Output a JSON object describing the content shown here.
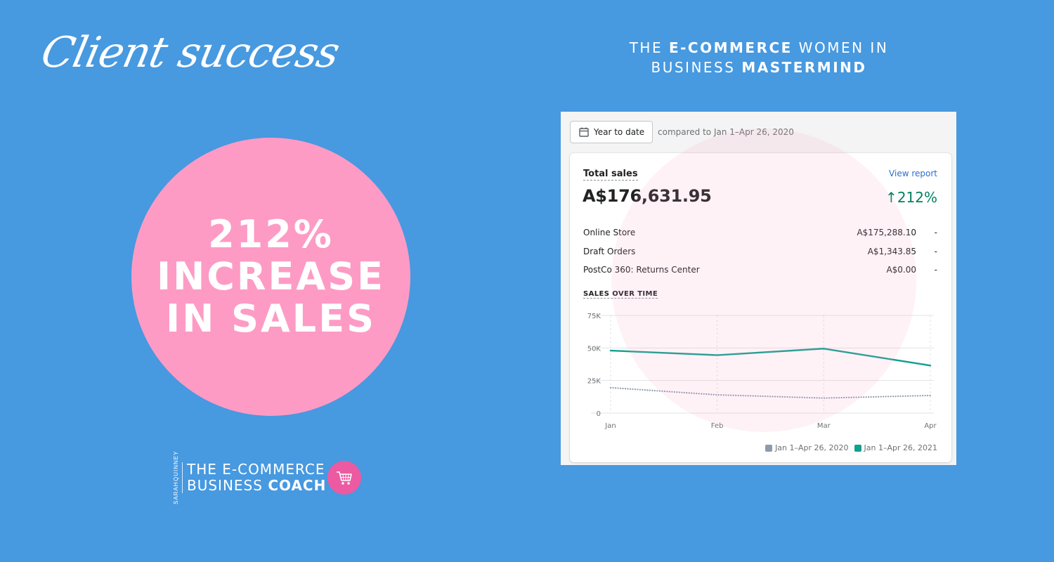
{
  "script_title": "Client success",
  "mastermind": {
    "pre": "THE ",
    "bold1": "E-COMMERCE",
    "mid": " WOMEN IN",
    "line2_pre": "BUSINESS ",
    "bold2": "MASTERMIND"
  },
  "headline": {
    "line1": "212%",
    "line2": "INCREASE",
    "line3": "IN SALES"
  },
  "brand": {
    "vertical_top": "SARAH",
    "vertical_bottom": "QUINNEY",
    "line1": "THE E-COMMERCE",
    "line2_pre": "BUSINESS ",
    "line2_bold": "COACH",
    "cart_icon": "shopping-cart-icon"
  },
  "report": {
    "date_button_label": "Year to date",
    "compare_text": "compared to Jan 1–Apr 26, 2020",
    "title": "Total sales",
    "view_report_label": "View report",
    "total": "A$176,631.95",
    "change": "212%",
    "channels": [
      {
        "name": "Online Store",
        "amount": "A$175,288.10",
        "trend": "-"
      },
      {
        "name": "Draft Orders",
        "amount": "A$1,343.85",
        "trend": "-"
      },
      {
        "name": "PostCo 360: Returns Center",
        "amount": "A$0.00",
        "trend": "-"
      }
    ],
    "sales_over_time_label": "SALES OVER TIME"
  },
  "colors": {
    "background": "#4799e0",
    "pink": "#fd9bc5",
    "current": "#12a08f",
    "previous": "#8c9bab",
    "positive": "#008060"
  },
  "chart_data": {
    "type": "line",
    "x": [
      "Jan",
      "Feb",
      "Mar",
      "Apr"
    ],
    "y_ticks": [
      "75K",
      "50K",
      "25K",
      "0"
    ],
    "ylim": [
      0,
      75000
    ],
    "grid": true,
    "legend": "bottom-right",
    "series": [
      {
        "name": "Jan 1–Apr 26, 2020",
        "style": "dotted",
        "color": "#8c9bab",
        "values": [
          19500,
          14000,
          11500,
          13500
        ]
      },
      {
        "name": "Jan 1–Apr 26, 2021",
        "style": "solid",
        "color": "#12a08f",
        "values": [
          48000,
          44500,
          49500,
          36500
        ]
      }
    ]
  }
}
